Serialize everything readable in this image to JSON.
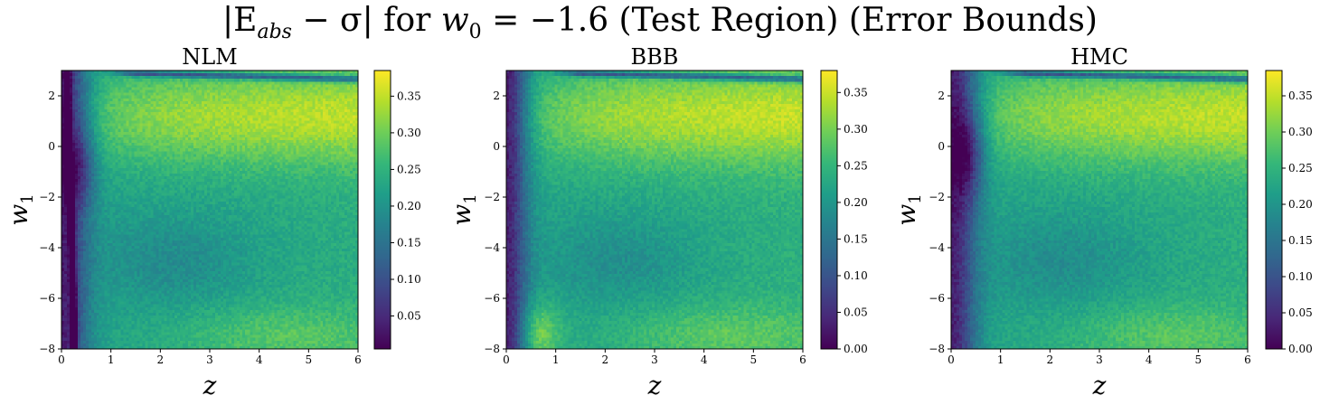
{
  "figure": {
    "title_parts": {
      "lhs": "|E",
      "lhs_sub": "abs",
      "mid": " − σ| for ",
      "w": "w",
      "w_sub": "0",
      "rhs": " = −1.6 (Test Region) (Error Bounds)"
    }
  },
  "colors": {
    "viridis": [
      "#440154",
      "#482878",
      "#3e4989",
      "#31688e",
      "#26828e",
      "#1f9e89",
      "#35b779",
      "#6ece58",
      "#b5de2b",
      "#fde725"
    ]
  },
  "chart_data": [
    {
      "type": "heatmap",
      "title": "NLM",
      "xlabel": "z",
      "ylabel": "w1",
      "xlim": [
        0,
        6
      ],
      "ylim": [
        -8,
        3
      ],
      "xticks": [
        "0",
        "1",
        "2",
        "3",
        "4",
        "5",
        "6"
      ],
      "yticks": [
        "−8",
        "−6",
        "−4",
        "−2",
        "0",
        "2"
      ],
      "colorbar": {
        "min": 0.005,
        "max": 0.385,
        "ticks": [
          "0.05",
          "0.10",
          "0.15",
          "0.20",
          "0.25",
          "0.30",
          "0.35"
        ]
      },
      "zrange": [
        0.005,
        0.385
      ]
    },
    {
      "type": "heatmap",
      "title": "BBB",
      "xlabel": "z",
      "ylabel": "w1",
      "xlim": [
        0,
        6
      ],
      "ylim": [
        -8,
        3
      ],
      "xticks": [
        "0",
        "1",
        "2",
        "3",
        "4",
        "5",
        "6"
      ],
      "yticks": [
        "−8",
        "−6",
        "−4",
        "−2",
        "0",
        "2"
      ],
      "colorbar": {
        "min": 0.0,
        "max": 0.38,
        "ticks": [
          "0.00",
          "0.05",
          "0.10",
          "0.15",
          "0.20",
          "0.25",
          "0.30",
          "0.35"
        ]
      },
      "zrange": [
        0.0,
        0.38
      ]
    },
    {
      "type": "heatmap",
      "title": "HMC",
      "xlabel": "z",
      "ylabel": "w1",
      "xlim": [
        0,
        6
      ],
      "ylim": [
        -8,
        3
      ],
      "xticks": [
        "0",
        "1",
        "2",
        "3",
        "4",
        "5",
        "6"
      ],
      "yticks": [
        "−8",
        "−6",
        "−4",
        "−2",
        "0",
        "2"
      ],
      "colorbar": {
        "min": 0.0,
        "max": 0.385,
        "ticks": [
          "0.00",
          "0.05",
          "0.10",
          "0.15",
          "0.20",
          "0.25",
          "0.30",
          "0.35"
        ]
      },
      "zrange": [
        0.0,
        0.385
      ]
    }
  ]
}
